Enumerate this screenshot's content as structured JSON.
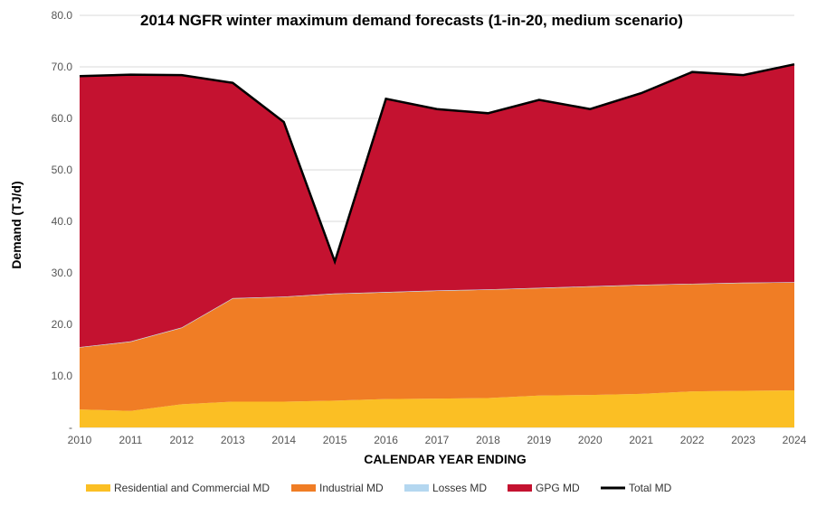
{
  "chart_data": {
    "type": "area",
    "title": "2014 NGFR winter maximum demand forecasts (1-in-20, medium scenario)",
    "xlabel": "CALENDAR YEAR ENDING",
    "ylabel": "Demand (TJ/d)",
    "x": [
      "2010",
      "2011",
      "2012",
      "2013",
      "2014",
      "2015",
      "2016",
      "2017",
      "2018",
      "2019",
      "2020",
      "2021",
      "2022",
      "2023",
      "2024"
    ],
    "ylim": [
      0,
      80
    ],
    "yticks": [
      "-",
      "10.0",
      "20.0",
      "30.0",
      "40.0",
      "50.0",
      "60.0",
      "70.0",
      "80.0"
    ],
    "stacked": true,
    "grid": true,
    "legend_position": "bottom",
    "series": [
      {
        "name": "Residential and Commercial MD",
        "color": "#FBBF24",
        "values": [
          3.5,
          3.2,
          4.5,
          5.0,
          5.0,
          5.2,
          5.5,
          5.6,
          5.7,
          6.2,
          6.3,
          6.5,
          7.0,
          7.1,
          7.2
        ]
      },
      {
        "name": "Industrial MD",
        "color": "#F07D25",
        "values": [
          12.0,
          13.4,
          14.8,
          20.0,
          20.3,
          20.7,
          20.7,
          20.9,
          21.0,
          20.8,
          21.0,
          21.1,
          20.8,
          20.9,
          20.9
        ]
      },
      {
        "name": "Losses MD",
        "color": "#B4D7F0",
        "values": [
          0.1,
          0.1,
          0.1,
          0.1,
          0.1,
          0.1,
          0.1,
          0.1,
          0.1,
          0.1,
          0.1,
          0.1,
          0.1,
          0.1,
          0.1
        ]
      },
      {
        "name": "GPG MD",
        "color": "#C41230",
        "values": [
          52.6,
          51.8,
          49.0,
          41.8,
          33.9,
          6.2,
          37.5,
          35.2,
          34.2,
          36.5,
          34.4,
          37.2,
          41.1,
          40.3,
          42.3
        ]
      }
    ],
    "total": {
      "name": "Total MD",
      "color": "#000000",
      "values": [
        68.2,
        68.5,
        68.4,
        66.9,
        59.3,
        32.2,
        63.8,
        61.8,
        61.0,
        63.6,
        61.8,
        64.9,
        69.0,
        68.4,
        70.5
      ]
    }
  }
}
